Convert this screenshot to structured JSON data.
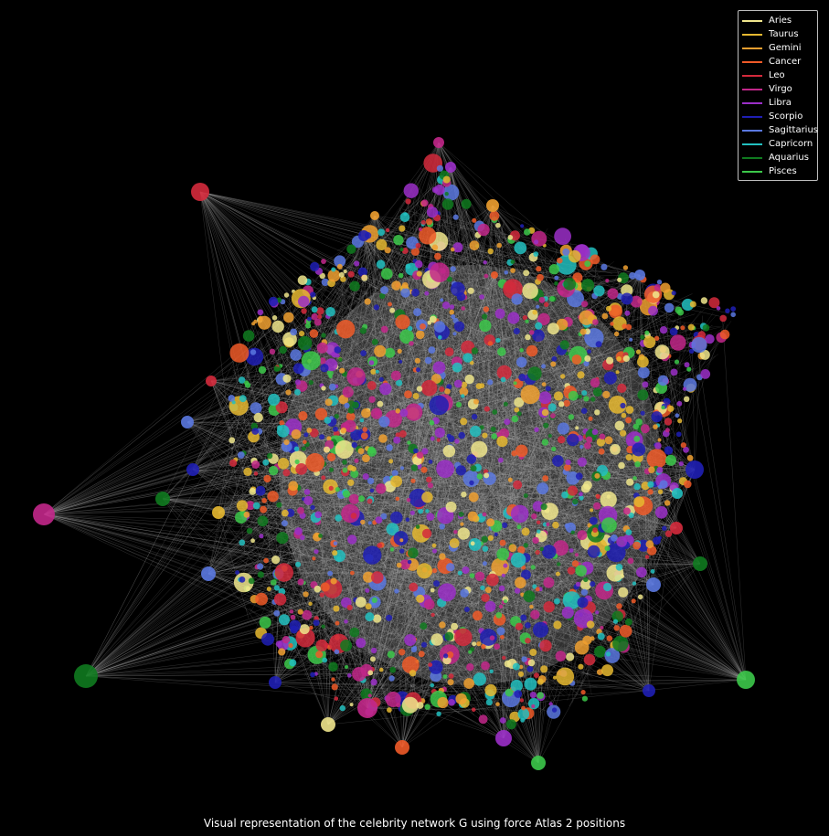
{
  "caption": "Visual representation of the celebrity network G using force Atlas 2 positions",
  "legend": [
    {
      "label": "Aries",
      "color": "#f0e68c"
    },
    {
      "label": "Taurus",
      "color": "#e6b830"
    },
    {
      "label": "Gemini",
      "color": "#f0a030"
    },
    {
      "label": "Cancer",
      "color": "#f05a28"
    },
    {
      "label": "Leo",
      "color": "#d42a3c"
    },
    {
      "label": "Virgo",
      "color": "#c2278a"
    },
    {
      "label": "Libra",
      "color": "#9b2fc8"
    },
    {
      "label": "Scorpio",
      "color": "#1f1fb4"
    },
    {
      "label": "Sagittarius",
      "color": "#5a78e0"
    },
    {
      "label": "Capricorn",
      "color": "#22c0c0"
    },
    {
      "label": "Aquarius",
      "color": "#0f7a1f"
    },
    {
      "label": "Pisces",
      "color": "#3cc84a"
    }
  ],
  "colors": {
    "background": "#000000",
    "edge": "#b4b4b4"
  }
}
